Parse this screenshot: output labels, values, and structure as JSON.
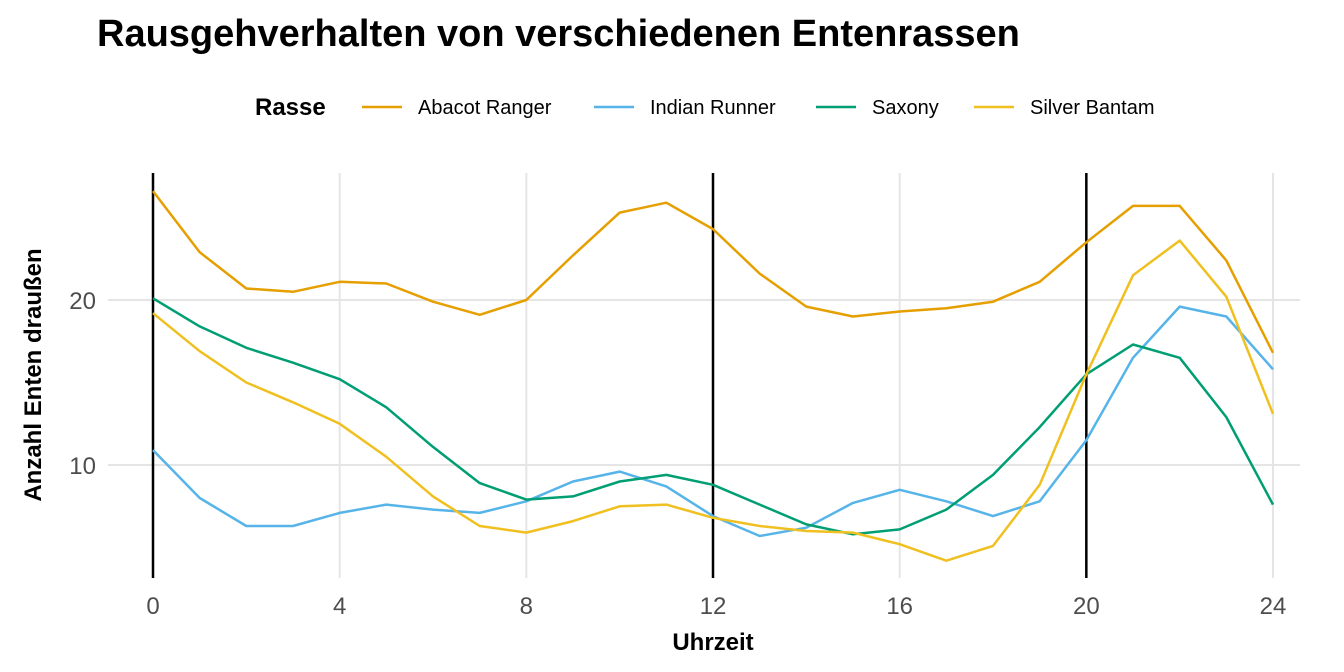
{
  "chart_data": {
    "type": "line",
    "title": "Rausgehverhalten von verschiedenen Entenrassen",
    "xlabel": "Uhrzeit",
    "ylabel": "Anzahl Enten draußen",
    "legend_title": "Rasse",
    "legend_position": "top",
    "grid": true,
    "xlim": [
      0,
      24
    ],
    "ylim": [
      4,
      27
    ],
    "x_ticks": [
      0,
      4,
      8,
      12,
      16,
      20,
      24
    ],
    "y_ticks": [
      10,
      20
    ],
    "vlines": [
      0,
      12,
      20
    ],
    "x": [
      0,
      1,
      2,
      3,
      4,
      5,
      6,
      7,
      8,
      9,
      10,
      11,
      12,
      13,
      14,
      15,
      16,
      17,
      18,
      19,
      20,
      21,
      22,
      23,
      24
    ],
    "series": [
      {
        "name": "Abacot Ranger",
        "color": "#E69F00",
        "values": [
          26.6,
          22.9,
          20.7,
          20.5,
          21.1,
          21.0,
          19.9,
          19.1,
          20.0,
          22.7,
          25.3,
          25.9,
          24.3,
          21.6,
          19.6,
          19.0,
          19.3,
          19.5,
          19.9,
          21.1,
          23.5,
          25.7,
          25.7,
          22.4,
          16.8
        ]
      },
      {
        "name": "Indian Runner",
        "color": "#56B4E9",
        "values": [
          10.9,
          8.0,
          6.3,
          6.3,
          7.1,
          7.6,
          7.3,
          7.1,
          7.8,
          9.0,
          9.6,
          8.7,
          6.9,
          5.7,
          6.2,
          7.7,
          8.5,
          7.8,
          6.9,
          7.8,
          11.5,
          16.5,
          19.6,
          19.0,
          15.8
        ]
      },
      {
        "name": "Saxony",
        "color": "#009E73",
        "values": [
          20.1,
          18.4,
          17.1,
          16.2,
          15.2,
          13.5,
          11.1,
          8.9,
          7.9,
          8.1,
          9.0,
          9.4,
          8.8,
          7.6,
          6.4,
          5.8,
          6.1,
          7.3,
          9.4,
          12.3,
          15.5,
          17.3,
          16.5,
          12.9,
          7.6
        ]
      },
      {
        "name": "Silver Bantam",
        "color": "#F0C020",
        "values": [
          19.2,
          16.9,
          15.0,
          13.8,
          12.5,
          10.5,
          8.1,
          6.3,
          5.9,
          6.6,
          7.5,
          7.6,
          6.8,
          6.3,
          6.0,
          5.9,
          5.2,
          4.2,
          5.1,
          8.8,
          15.5,
          21.5,
          23.6,
          20.2,
          13.1
        ]
      }
    ]
  }
}
